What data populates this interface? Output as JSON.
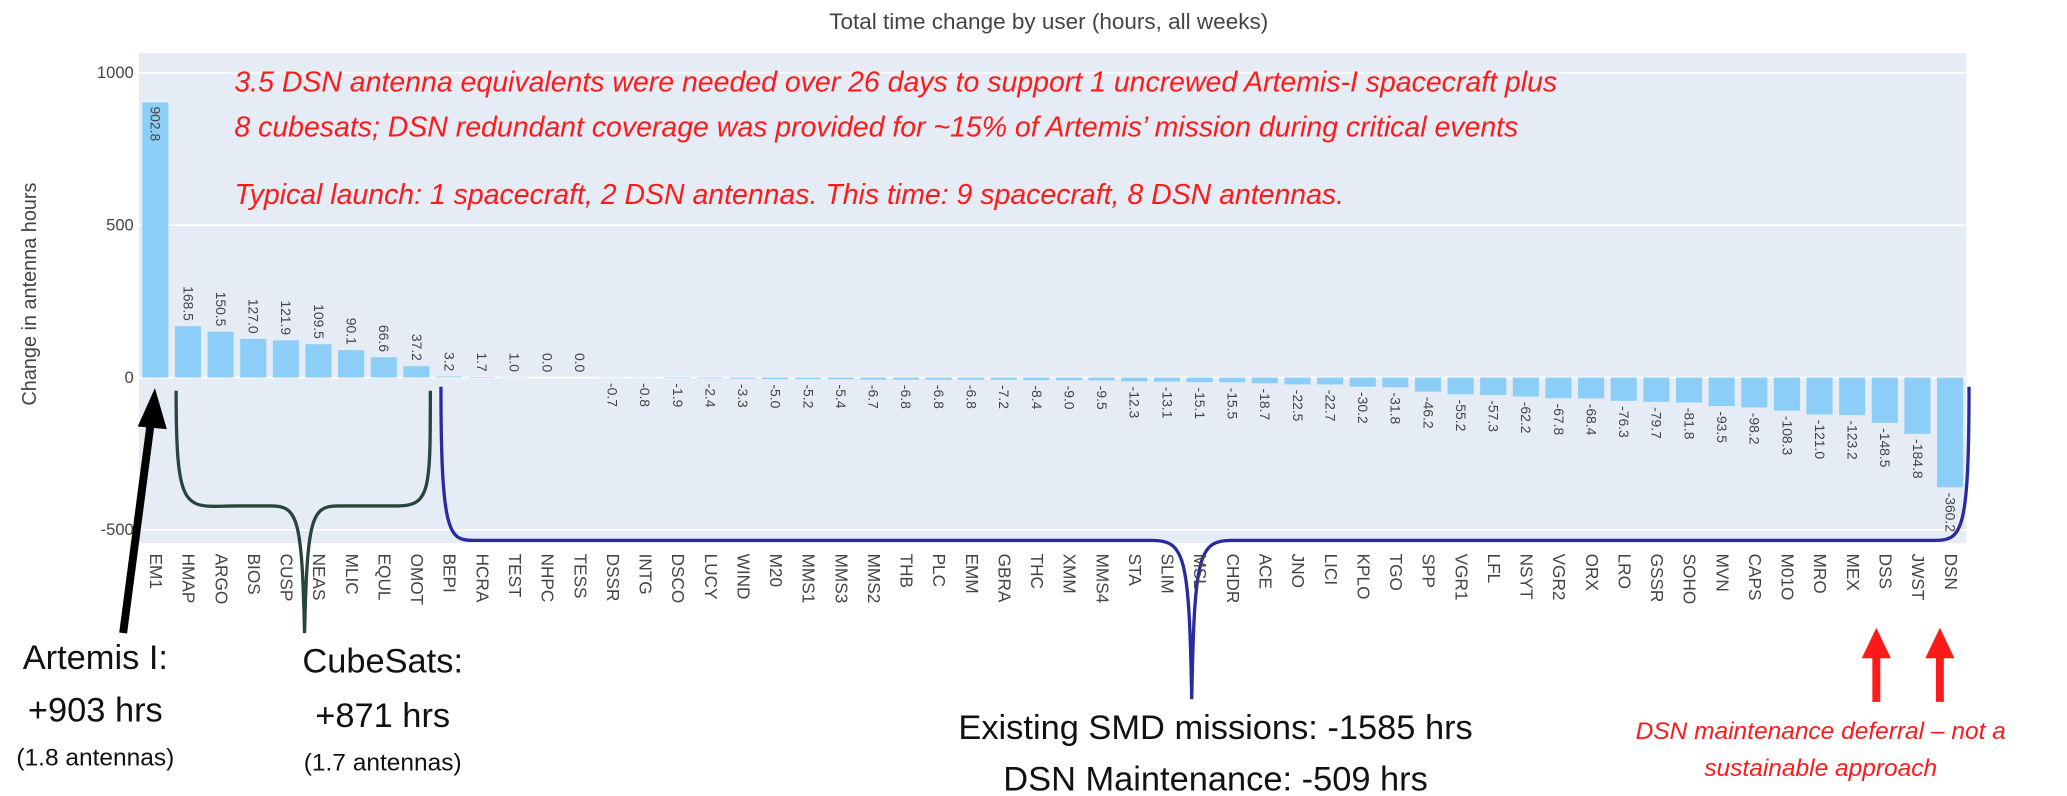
{
  "chart_data": {
    "type": "bar",
    "title": "Total time change by user (hours, all weeks)",
    "ylabel": "Change in antenna hours",
    "categories": [
      "EM1",
      "HMAP",
      "ARGO",
      "BIOS",
      "CUSP",
      "NEAS",
      "MLIC",
      "EQUL",
      "OMOT",
      "BEPI",
      "HCRA",
      "TEST",
      "NHPC",
      "TESS",
      "DSSR",
      "INTG",
      "DSCO",
      "LUCY",
      "WIND",
      "M20",
      "MMS1",
      "MMS3",
      "MMS2",
      "THB",
      "PLC",
      "EMM",
      "GBRA",
      "THC",
      "XMM",
      "MMS4",
      "STA",
      "SLIM",
      "MSL",
      "CHDR",
      "ACE",
      "JNO",
      "LICI",
      "KPLO",
      "TGO",
      "SPP",
      "VGR1",
      "LFL",
      "NSYT",
      "VGR2",
      "ORX",
      "LRO",
      "GSSR",
      "SOHO",
      "MVN",
      "CAPS",
      "M01O",
      "MRO",
      "MEX",
      "DSS",
      "JWST",
      "DSN"
    ],
    "values": [
      902.8,
      168.5,
      150.5,
      127.0,
      121.9,
      109.5,
      90.1,
      66.6,
      37.2,
      3.2,
      1.7,
      1.0,
      0.0,
      0.0,
      -0.7,
      -0.8,
      -1.9,
      -2.4,
      -3.3,
      -5.0,
      -5.2,
      -5.4,
      -6.7,
      -6.8,
      -6.8,
      -6.8,
      -7.2,
      -8.4,
      -9.0,
      -9.5,
      -12.3,
      -13.1,
      -15.1,
      -15.5,
      -18.7,
      -22.5,
      -22.7,
      -30.2,
      -31.8,
      -46.2,
      -55.2,
      -57.3,
      -62.2,
      -67.8,
      -68.4,
      -76.3,
      -79.7,
      -81.8,
      -93.5,
      -98.2,
      -108.3,
      -121.0,
      -123.2,
      -148.5,
      -184.8,
      -360.2
    ],
    "value_labels": [
      "902.8",
      "168.5",
      "150.5",
      "127.0",
      "121.9",
      "109.5",
      "90.1",
      "66.6",
      "37.2",
      "3.2",
      "1.7",
      "1.0",
      "0.0",
      "0.0",
      "-0.7",
      "-0.8",
      "-1.9",
      "-2.4",
      "-3.3",
      "-5.0",
      "-5.2",
      "-5.4",
      "-6.7",
      "-6.8",
      "-6.8",
      "-6.8",
      "-7.2",
      "-8.4",
      "-9.0",
      "-9.5",
      "-12.3",
      "-13.1",
      "-15.1",
      "-15.5",
      "-18.7",
      "-22.5",
      "-22.7",
      "-30.2",
      "-31.8",
      "-46.2",
      "-55.2",
      "-57.3",
      "-62.2",
      "-67.8",
      "-68.4",
      "-76.3",
      "-79.7",
      "-81.8",
      "-93.5",
      "-98.2",
      "-108.3",
      "-121.0",
      "-123.2",
      "-148.5",
      "-184.8",
      "-360.2"
    ],
    "color": "#8ccef7",
    "ylim": [
      -543,
      1065
    ],
    "yticks": [
      -500,
      0,
      500,
      1000
    ],
    "grid": true,
    "annotations": [
      "3.5 DSN antenna equivalents were needed over 26 days to support 1 uncrewed Artemis-I spacecraft plus",
      "8 cubesats; DSN redundant coverage was provided for ~15% of Artemis’ mission during critical events",
      "Typical launch: 1 spacecraft, 2 DSN antennas. This time: 9 spacecraft, 8 DSN antennas.",
      "Artemis I:",
      "+903 hrs",
      "(1.8 antennas)",
      "CubeSats:",
      "+871 hrs",
      "(1.7 antennas)",
      "Existing SMD missions: -1585 hrs",
      "DSN Maintenance: -509 hrs",
      "DSN maintenance deferral – not a",
      "sustainable approach"
    ]
  }
}
